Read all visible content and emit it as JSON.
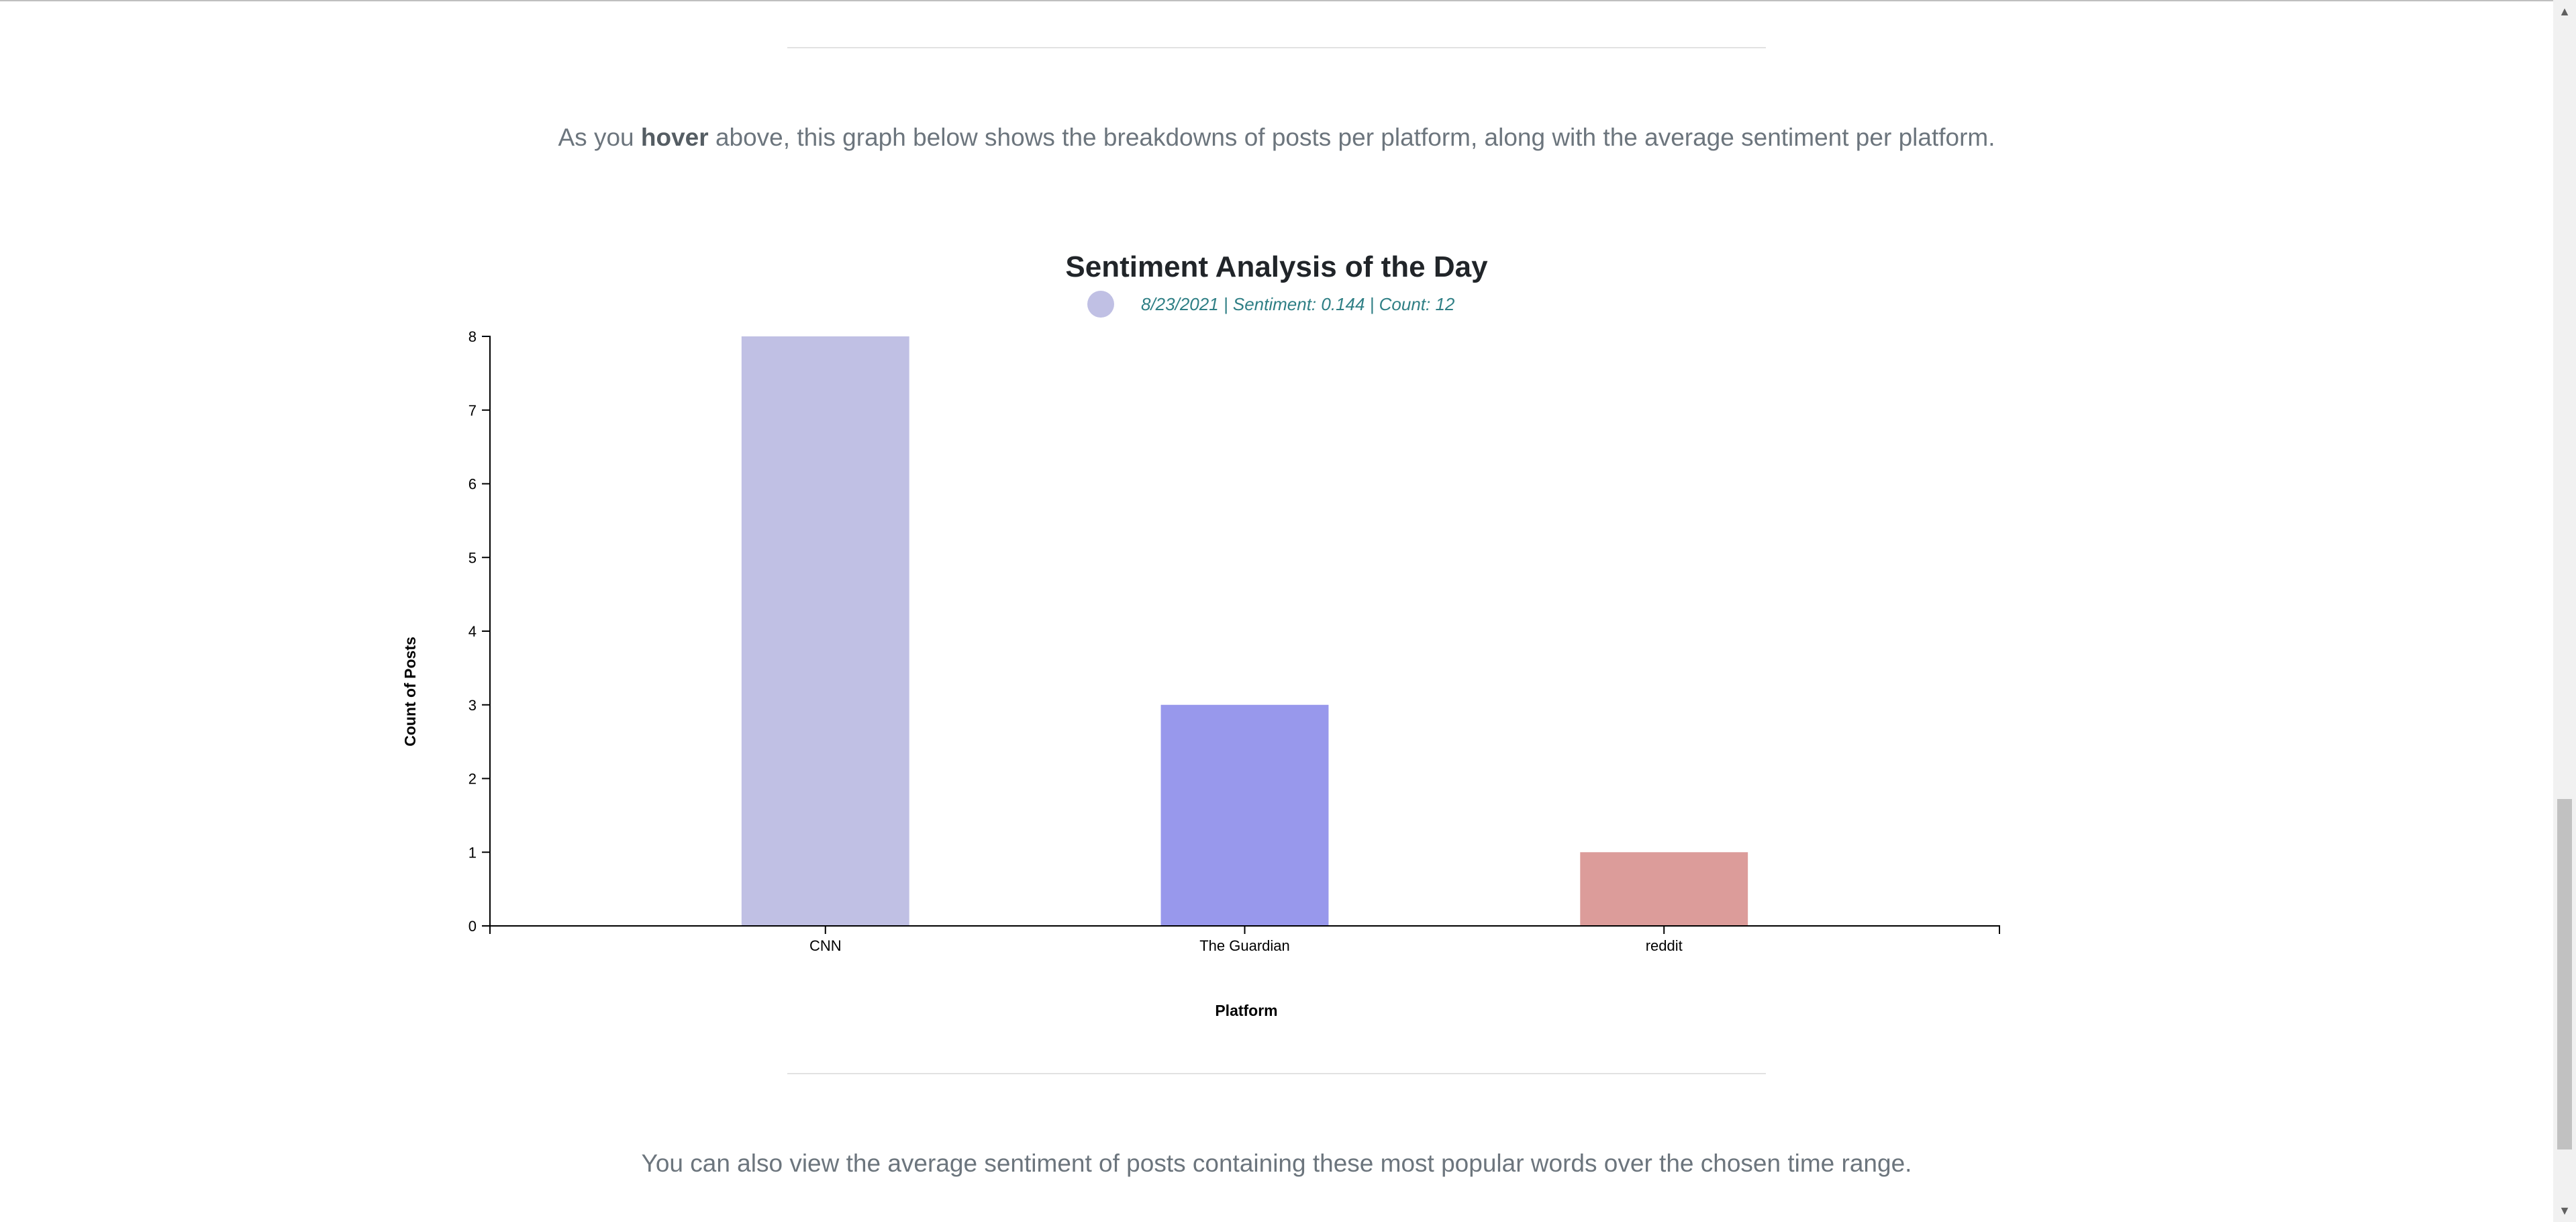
{
  "intro": {
    "before": "As you ",
    "bold": "hover",
    "after": " above, this graph below shows the breakdowns of posts per platform, along with the average sentiment per platform."
  },
  "outro": "You can also view the average sentiment of posts containing these most popular words over the chosen time range.",
  "legend": {
    "text": "8/23/2021 | Sentiment: 0.144 | Count: 12",
    "color": "#c0c0e4"
  },
  "chart_data": {
    "type": "bar",
    "title": "Sentiment Analysis of the Day",
    "xlabel": "Platform",
    "ylabel": "Count of Posts",
    "categories": [
      "CNN",
      "The Guardian",
      "reddit"
    ],
    "values": [
      8,
      3,
      1
    ],
    "colors": [
      "#c0c0e4",
      "#9898ec",
      "#dc9c9a"
    ],
    "ylim": [
      0,
      8
    ],
    "yticks": [
      0,
      1,
      2,
      3,
      4,
      5,
      6,
      7,
      8
    ],
    "grid": false
  },
  "scrollbar": {
    "up_icon": "▲",
    "down_icon": "▼"
  }
}
